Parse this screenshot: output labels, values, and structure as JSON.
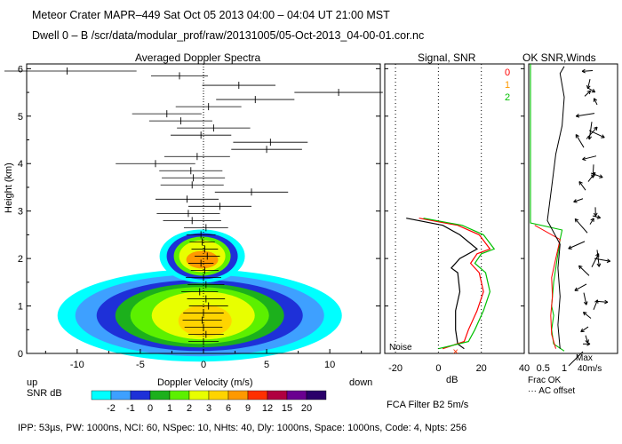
{
  "header": {
    "title_line": "Meteor Crater   MAPR–449   Sat Oct 05 2013 04:00 – 04:04 UT 21:00 MST",
    "dwell_line": "Dwell  0 –  B   /scr/data/modular_prof/raw/20131005/05-Oct-2013_04-00-01.cor.nc"
  },
  "footer": {
    "params": "IPP:  53µs,  PW: 1000ns,  NCI:  60,  NSpec: 10, NHts: 40,  Dly: 1000ns,  Space: 1000ns,  Code: 4,  Npts: 256",
    "fca": "FCA Filter B2   5m/s"
  },
  "chart_data": [
    {
      "type": "heatmap",
      "title": "Averaged Doppler Spectra",
      "xlabel": "Doppler Velocity (m/s)",
      "ylabel": "Height (km)",
      "x_ticks": [
        -10,
        -5,
        0,
        5,
        10
      ],
      "y_ticks": [
        0,
        1,
        2,
        3,
        4,
        5,
        6
      ],
      "xlim": [
        -14,
        14
      ],
      "ylim": [
        0,
        6.1
      ],
      "label_up": "up",
      "label_down": "down",
      "colorbar": {
        "label": "SNR dB",
        "values": [
          "-2",
          "-1",
          "0",
          "1",
          "2",
          "3",
          "6",
          "9",
          "12",
          "15",
          "20"
        ],
        "colors": [
          "#00ffff",
          "#3ea0ff",
          "#1e30d8",
          "#1cb01c",
          "#5cf000",
          "#e8ff00",
          "#ffd400",
          "#ff9900",
          "#ff3000",
          "#b00040",
          "#6a0090",
          "#2a006a"
        ]
      },
      "mean_velocity_markers": [
        {
          "h": 5.95,
          "v": -10.8,
          "w": 11.0
        },
        {
          "h": 5.85,
          "v": -1.9,
          "w": 4.5
        },
        {
          "h": 5.65,
          "v": 2.8,
          "w": 5.8
        },
        {
          "h": 5.5,
          "v": 10.7,
          "w": 7.0
        },
        {
          "h": 5.35,
          "v": 4.1,
          "w": 6.2
        },
        {
          "h": 5.2,
          "v": 0.4,
          "w": 5.2
        },
        {
          "h": 5.05,
          "v": -2.9,
          "w": 5.5
        },
        {
          "h": 4.9,
          "v": -1.8,
          "w": 5.0
        },
        {
          "h": 4.75,
          "v": 0.8,
          "w": 5.8
        },
        {
          "h": 4.6,
          "v": -0.2,
          "w": 4.8
        },
        {
          "h": 4.45,
          "v": 5.3,
          "w": 5.9
        },
        {
          "h": 4.3,
          "v": 5.0,
          "w": 5.6
        },
        {
          "h": 4.15,
          "v": -0.5,
          "w": 5.2
        },
        {
          "h": 4.0,
          "v": -3.8,
          "w": 6.3
        },
        {
          "h": 3.85,
          "v": -1.0,
          "w": 5.0
        },
        {
          "h": 3.7,
          "v": -0.8,
          "w": 5.0
        },
        {
          "h": 3.55,
          "v": -0.9,
          "w": 5.0
        },
        {
          "h": 3.4,
          "v": 3.8,
          "w": 5.8
        },
        {
          "h": 3.25,
          "v": -1.3,
          "w": 5.0
        },
        {
          "h": 3.1,
          "v": 1.3,
          "w": 5.0
        },
        {
          "h": 2.95,
          "v": -1.2,
          "w": 5.0
        },
        {
          "h": 2.8,
          "v": -0.9,
          "w": 4.6
        },
        {
          "h": 2.65,
          "v": 0.2,
          "w": 3.5
        },
        {
          "h": 2.5,
          "v": -0.2,
          "w": 2.3
        },
        {
          "h": 2.35,
          "v": -0.1,
          "w": 2.0
        },
        {
          "h": 2.2,
          "v": 0.1,
          "w": 2.1
        },
        {
          "h": 2.05,
          "v": 0.3,
          "w": 2.0
        },
        {
          "h": 1.9,
          "v": -0.2,
          "w": 2.0
        },
        {
          "h": 1.75,
          "v": 0.1,
          "w": 2.2
        },
        {
          "h": 1.6,
          "v": 0.0,
          "w": 2.8
        },
        {
          "h": 1.45,
          "v": 0.2,
          "w": 2.9
        },
        {
          "h": 1.3,
          "v": -0.3,
          "w": 2.9
        },
        {
          "h": 1.15,
          "v": 0.2,
          "w": 3.0
        },
        {
          "h": 1.0,
          "v": 0.4,
          "w": 3.1
        },
        {
          "h": 0.85,
          "v": 0.0,
          "w": 3.2
        },
        {
          "h": 0.7,
          "v": -0.1,
          "w": 3.1
        },
        {
          "h": 0.55,
          "v": 0.0,
          "w": 3.0
        },
        {
          "h": 0.4,
          "v": 0.2,
          "w": 2.8
        },
        {
          "h": 0.25,
          "v": 0.0,
          "w": 2.4
        }
      ]
    },
    {
      "type": "line",
      "title": "Signal, SNR",
      "xlabel": "dB",
      "x_ticks": [
        -20,
        0,
        20,
        40
      ],
      "xlim": [
        -25,
        40
      ],
      "ylim": [
        0,
        6.1
      ],
      "noise_label": "Noise",
      "legend": [
        "0",
        "1",
        "2"
      ],
      "series": [
        {
          "name": "0",
          "color": "#000000",
          "points": [
            [
              12,
              0.1
            ],
            [
              9,
              0.2
            ],
            [
              8,
              0.5
            ],
            [
              8,
              0.9
            ],
            [
              10,
              1.3
            ],
            [
              9,
              1.7
            ],
            [
              6,
              1.8
            ],
            [
              10,
              2.0
            ],
            [
              18,
              2.2
            ],
            [
              10,
              2.5
            ],
            [
              2,
              2.7
            ],
            [
              -15,
              2.85
            ]
          ]
        },
        {
          "name": "1",
          "color": "#ff0000",
          "points": [
            [
              2,
              0.1
            ],
            [
              12,
              0.25
            ],
            [
              14,
              0.5
            ],
            [
              18,
              0.9
            ],
            [
              21,
              1.3
            ],
            [
              19,
              1.7
            ],
            [
              15,
              1.9
            ],
            [
              18,
              2.1
            ],
            [
              24,
              2.2
            ],
            [
              19,
              2.5
            ],
            [
              9,
              2.7
            ],
            [
              -9,
              2.85
            ]
          ]
        },
        {
          "name": "2",
          "color": "#00c000",
          "points": [
            [
              0,
              0.1
            ],
            [
              14,
              0.25
            ],
            [
              17,
              0.5
            ],
            [
              21,
              0.9
            ],
            [
              24,
              1.3
            ],
            [
              22,
              1.7
            ],
            [
              17,
              1.9
            ],
            [
              20,
              2.1
            ],
            [
              26,
              2.2
            ],
            [
              21,
              2.5
            ],
            [
              11,
              2.7
            ],
            [
              -7,
              2.85
            ]
          ]
        }
      ]
    },
    {
      "type": "line",
      "title": "OK SNR,Winds",
      "xlabel": "Frac OK",
      "note": "··· AC offset",
      "x_ticks": [
        "0.5",
        "1"
      ],
      "max_label": "Max",
      "max_speed": "40m/s"
    }
  ]
}
